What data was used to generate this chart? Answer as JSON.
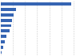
{
  "values": [
    291,
    63,
    52,
    46,
    42,
    35,
    24,
    16,
    11,
    4
  ],
  "bar_color": "#3665b3",
  "background_color": "#ffffff",
  "grid_color": "#cccccc",
  "xlim": [
    0,
    320
  ],
  "grid_ticks": [
    0,
    50,
    100,
    150,
    200,
    250,
    300
  ]
}
